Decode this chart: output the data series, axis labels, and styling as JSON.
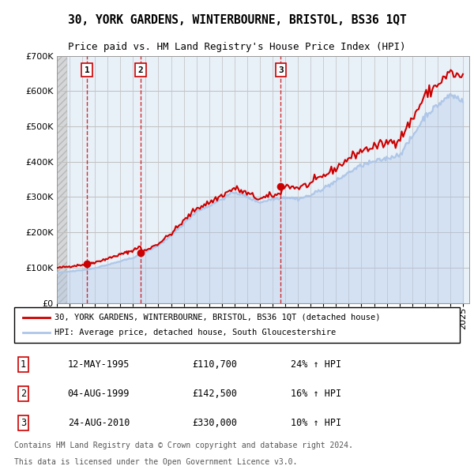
{
  "title_line1": "30, YORK GARDENS, WINTERBOURNE, BRISTOL, BS36 1QT",
  "title_line2": "Price paid vs. HM Land Registry's House Price Index (HPI)",
  "ylabel_ticks": [
    "£0",
    "£100K",
    "£200K",
    "£300K",
    "£400K",
    "£500K",
    "£600K",
    "£700K"
  ],
  "ylim": [
    0,
    700000
  ],
  "yticks": [
    0,
    100000,
    200000,
    300000,
    400000,
    500000,
    600000,
    700000
  ],
  "xlim_start": 1993.0,
  "xlim_end": 2025.5,
  "sale_dates": [
    1995.36,
    1999.59,
    2010.65
  ],
  "sale_prices": [
    110700,
    142500,
    330000
  ],
  "sale_labels": [
    "1",
    "2",
    "3"
  ],
  "legend_line1": "30, YORK GARDENS, WINTERBOURNE, BRISTOL, BS36 1QT (detached house)",
  "legend_line2": "HPI: Average price, detached house, South Gloucestershire",
  "table_rows": [
    [
      "1",
      "12-MAY-1995",
      "£110,700",
      "24% ↑ HPI"
    ],
    [
      "2",
      "04-AUG-1999",
      "£142,500",
      "16% ↑ HPI"
    ],
    [
      "3",
      "24-AUG-2010",
      "£330,000",
      "10% ↑ HPI"
    ]
  ],
  "footer_line1": "Contains HM Land Registry data © Crown copyright and database right 2024.",
  "footer_line2": "This data is licensed under the Open Government Licence v3.0.",
  "hpi_color": "#aec6e8",
  "sale_color": "#cc0000",
  "background_hatch_color": "#d0d0d0",
  "grid_color": "#c0c0c0",
  "plot_bg_color": "#e8f0f8",
  "hatch_bg_color": "#d8d8d8"
}
